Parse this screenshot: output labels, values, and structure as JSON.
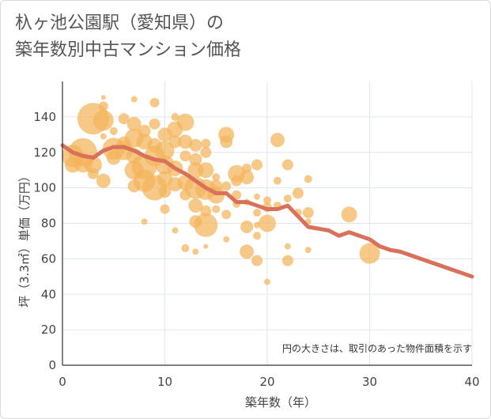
{
  "title_lines": [
    "杁ヶ池公園駅（愛知県）の",
    "築年数別中古マンション価格"
  ],
  "chart_data": {
    "type": "scatter",
    "xlabel": "築年数（年）",
    "ylabel": "坪（3.3㎡）単価（万円）",
    "xlim": [
      0,
      40
    ],
    "ylim": [
      0,
      160
    ],
    "xticks": [
      "0",
      "10",
      "20",
      "30",
      "40"
    ],
    "yticks": [
      "0",
      "20",
      "40",
      "60",
      "80",
      "100",
      "120",
      "140"
    ],
    "grid": true,
    "note": "円の大きさは、取引のあった物件面積を示す",
    "colors": {
      "bubble": "#f2b45a",
      "trend": "#d9705a",
      "grid": "#dde6ee"
    },
    "bubbles": [
      {
        "x": 1,
        "y": 113,
        "s": 10
      },
      {
        "x": 1,
        "y": 118,
        "s": 14
      },
      {
        "x": 2,
        "y": 120,
        "s": 18
      },
      {
        "x": 2,
        "y": 114,
        "s": 12
      },
      {
        "x": 3,
        "y": 139,
        "s": 20
      },
      {
        "x": 3,
        "y": 113,
        "s": 11
      },
      {
        "x": 3,
        "y": 108,
        "s": 7
      },
      {
        "x": 4,
        "y": 138,
        "s": 13
      },
      {
        "x": 4,
        "y": 151,
        "s": 3
      },
      {
        "x": 4,
        "y": 129,
        "s": 4
      },
      {
        "x": 4,
        "y": 104,
        "s": 9
      },
      {
        "x": 4,
        "y": 146,
        "s": 6
      },
      {
        "x": 5,
        "y": 122,
        "s": 14
      },
      {
        "x": 5,
        "y": 117,
        "s": 9
      },
      {
        "x": 5,
        "y": 132,
        "s": 5
      },
      {
        "x": 6,
        "y": 139,
        "s": 7
      },
      {
        "x": 6,
        "y": 125,
        "s": 9
      },
      {
        "x": 6,
        "y": 121,
        "s": 12
      },
      {
        "x": 7,
        "y": 150,
        "s": 4
      },
      {
        "x": 7,
        "y": 136,
        "s": 9
      },
      {
        "x": 7,
        "y": 128,
        "s": 12
      },
      {
        "x": 7,
        "y": 118,
        "s": 10
      },
      {
        "x": 7,
        "y": 110,
        "s": 12
      },
      {
        "x": 7,
        "y": 101,
        "s": 8
      },
      {
        "x": 8,
        "y": 132,
        "s": 8
      },
      {
        "x": 8,
        "y": 126,
        "s": 10
      },
      {
        "x": 8,
        "y": 112,
        "s": 16
      },
      {
        "x": 8,
        "y": 104,
        "s": 14
      },
      {
        "x": 8,
        "y": 81,
        "s": 4
      },
      {
        "x": 9,
        "y": 148,
        "s": 6
      },
      {
        "x": 9,
        "y": 136,
        "s": 7
      },
      {
        "x": 9,
        "y": 124,
        "s": 9
      },
      {
        "x": 9,
        "y": 118,
        "s": 13
      },
      {
        "x": 9,
        "y": 100,
        "s": 16
      },
      {
        "x": 10,
        "y": 130,
        "s": 9
      },
      {
        "x": 10,
        "y": 121,
        "s": 12
      },
      {
        "x": 10,
        "y": 113,
        "s": 12
      },
      {
        "x": 10,
        "y": 105,
        "s": 10
      },
      {
        "x": 10,
        "y": 98,
        "s": 8
      },
      {
        "x": 10,
        "y": 88,
        "s": 6
      },
      {
        "x": 11,
        "y": 140,
        "s": 5
      },
      {
        "x": 11,
        "y": 133,
        "s": 10
      },
      {
        "x": 11,
        "y": 126,
        "s": 8
      },
      {
        "x": 11,
        "y": 111,
        "s": 10
      },
      {
        "x": 11,
        "y": 102,
        "s": 9
      },
      {
        "x": 11,
        "y": 76,
        "s": 4
      },
      {
        "x": 12,
        "y": 137,
        "s": 11
      },
      {
        "x": 12,
        "y": 126,
        "s": 9
      },
      {
        "x": 12,
        "y": 118,
        "s": 7
      },
      {
        "x": 12,
        "y": 103,
        "s": 10
      },
      {
        "x": 12,
        "y": 96,
        "s": 7
      },
      {
        "x": 12,
        "y": 66,
        "s": 5
      },
      {
        "x": 13,
        "y": 124,
        "s": 8
      },
      {
        "x": 13,
        "y": 116,
        "s": 8
      },
      {
        "x": 13,
        "y": 110,
        "s": 10
      },
      {
        "x": 13,
        "y": 100,
        "s": 14
      },
      {
        "x": 13,
        "y": 90,
        "s": 9
      },
      {
        "x": 13,
        "y": 81,
        "s": 8
      },
      {
        "x": 13,
        "y": 64,
        "s": 4
      },
      {
        "x": 14,
        "y": 125,
        "s": 6
      },
      {
        "x": 14,
        "y": 120,
        "s": 7
      },
      {
        "x": 14,
        "y": 110,
        "s": 10
      },
      {
        "x": 14,
        "y": 99,
        "s": 13
      },
      {
        "x": 14,
        "y": 87,
        "s": 7
      },
      {
        "x": 14,
        "y": 79,
        "s": 15
      },
      {
        "x": 14,
        "y": 67,
        "s": 3
      },
      {
        "x": 15,
        "y": 106,
        "s": 5
      },
      {
        "x": 15,
        "y": 101,
        "s": 8
      },
      {
        "x": 15,
        "y": 96,
        "s": 11
      },
      {
        "x": 15,
        "y": 88,
        "s": 5
      },
      {
        "x": 16,
        "y": 130,
        "s": 10
      },
      {
        "x": 16,
        "y": 126,
        "s": 8
      },
      {
        "x": 16,
        "y": 101,
        "s": 6
      },
      {
        "x": 16,
        "y": 85,
        "s": 6
      },
      {
        "x": 16,
        "y": 71,
        "s": 4
      },
      {
        "x": 17,
        "y": 108,
        "s": 11
      },
      {
        "x": 17,
        "y": 104,
        "s": 7
      },
      {
        "x": 17,
        "y": 96,
        "s": 6
      },
      {
        "x": 17,
        "y": 91,
        "s": 5
      },
      {
        "x": 18,
        "y": 111,
        "s": 6
      },
      {
        "x": 18,
        "y": 106,
        "s": 9
      },
      {
        "x": 18,
        "y": 92,
        "s": 4
      },
      {
        "x": 18,
        "y": 78,
        "s": 8
      },
      {
        "x": 18,
        "y": 64,
        "s": 9
      },
      {
        "x": 19,
        "y": 113,
        "s": 7
      },
      {
        "x": 19,
        "y": 95,
        "s": 4
      },
      {
        "x": 19,
        "y": 86,
        "s": 5
      },
      {
        "x": 19,
        "y": 79,
        "s": 4
      },
      {
        "x": 19,
        "y": 73,
        "s": 5
      },
      {
        "x": 19,
        "y": 59,
        "s": 7
      },
      {
        "x": 20,
        "y": 93,
        "s": 5
      },
      {
        "x": 20,
        "y": 89,
        "s": 6
      },
      {
        "x": 20,
        "y": 80,
        "s": 11
      },
      {
        "x": 20,
        "y": 47,
        "s": 4
      },
      {
        "x": 21,
        "y": 127,
        "s": 9
      },
      {
        "x": 21,
        "y": 104,
        "s": 5
      },
      {
        "x": 21,
        "y": 90,
        "s": 5
      },
      {
        "x": 22,
        "y": 113,
        "s": 7
      },
      {
        "x": 22,
        "y": 94,
        "s": 5
      },
      {
        "x": 22,
        "y": 67,
        "s": 4
      },
      {
        "x": 22,
        "y": 59,
        "s": 7
      },
      {
        "x": 23,
        "y": 97,
        "s": 7
      },
      {
        "x": 23,
        "y": 86,
        "s": 5
      },
      {
        "x": 24,
        "y": 105,
        "s": 5
      },
      {
        "x": 24,
        "y": 86,
        "s": 7
      },
      {
        "x": 24,
        "y": 81,
        "s": 4
      },
      {
        "x": 24,
        "y": 65,
        "s": 4
      },
      {
        "x": 28,
        "y": 85,
        "s": 10
      },
      {
        "x": 30,
        "y": 63,
        "s": 13
      }
    ],
    "trend": {
      "x": [
        0,
        1,
        2,
        3,
        4,
        5,
        6,
        7,
        8,
        9,
        10,
        11,
        12,
        13,
        14,
        15,
        16,
        17,
        18,
        19,
        20,
        21,
        22,
        23,
        24,
        25,
        26,
        27,
        28,
        29,
        30,
        31,
        32,
        33,
        34,
        35,
        36,
        37,
        38,
        39,
        40
      ],
      "y": [
        124,
        120,
        118,
        117,
        121,
        123,
        123,
        121,
        118,
        116,
        115,
        111,
        108,
        104,
        100,
        97,
        97,
        92,
        92,
        90,
        88,
        88,
        90,
        84,
        78,
        77,
        76,
        73,
        75,
        73,
        71,
        67,
        65,
        64,
        62,
        60,
        58,
        56,
        54,
        52,
        50
      ]
    }
  }
}
